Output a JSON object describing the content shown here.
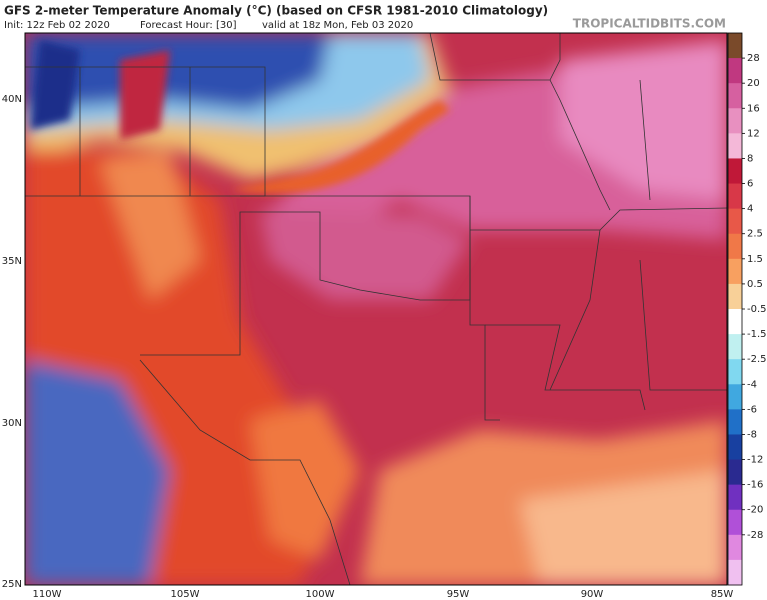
{
  "header": {
    "title": "GFS 2-meter Temperature Anomaly (°C) (based on CFSR 1981-2010 Climatology)",
    "init": "Init: 12z Feb 02 2020",
    "forecast_hour": "Forecast Hour: [30]",
    "valid": "valid at 18z Mon, Feb 03 2020",
    "watermark": "TROPICALTIDBITS.COM"
  },
  "axes": {
    "latitude": [
      "40N",
      "35N",
      "30N",
      "25N"
    ],
    "longitude": [
      "110W",
      "105W",
      "100W",
      "95W",
      "90W",
      "85W"
    ]
  },
  "colorbar": {
    "labels": [
      "28",
      "20",
      "16",
      "12",
      "8",
      "6",
      "4",
      "2.5",
      "1.5",
      "0.5",
      "-0.5",
      "-1.5",
      "-2.5",
      "-4",
      "-6",
      "-8",
      "-12",
      "-16",
      "-20",
      "-28"
    ]
  }
}
